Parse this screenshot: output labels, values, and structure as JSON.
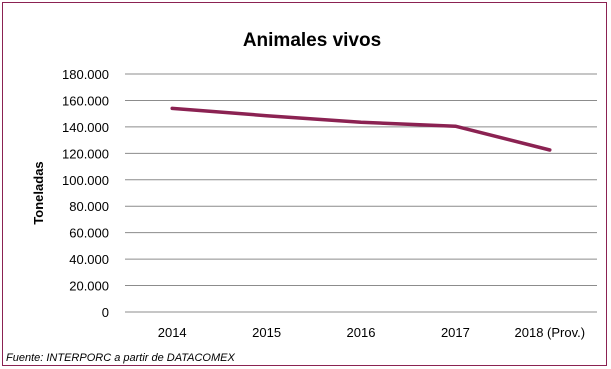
{
  "chart_data": {
    "type": "line",
    "title": "Animales vivos",
    "ylabel": "Toneladas",
    "xlabel": "",
    "categories": [
      "2014",
      "2015",
      "2016",
      "2017",
      "2018 (Prov.)"
    ],
    "series": [
      {
        "values": [
          154000,
          148500,
          143500,
          140500,
          122500
        ],
        "color": "#8B2252"
      }
    ],
    "ylim": [
      0,
      180000
    ],
    "yticks": [
      0,
      20000,
      40000,
      60000,
      80000,
      100000,
      120000,
      140000,
      160000,
      180000
    ],
    "ytick_labels": [
      "0",
      "20.000",
      "40.000",
      "60.000",
      "80.000",
      "100.000",
      "120.000",
      "140.000",
      "160.000",
      "180.000"
    ],
    "grid": true,
    "legend": "none"
  },
  "source": "Fuente: INTERPORC  a partir de DATACOMEX",
  "colors": {
    "frame": "#8B2252",
    "grid": "#8c8c8c",
    "line": "#8B2252"
  }
}
